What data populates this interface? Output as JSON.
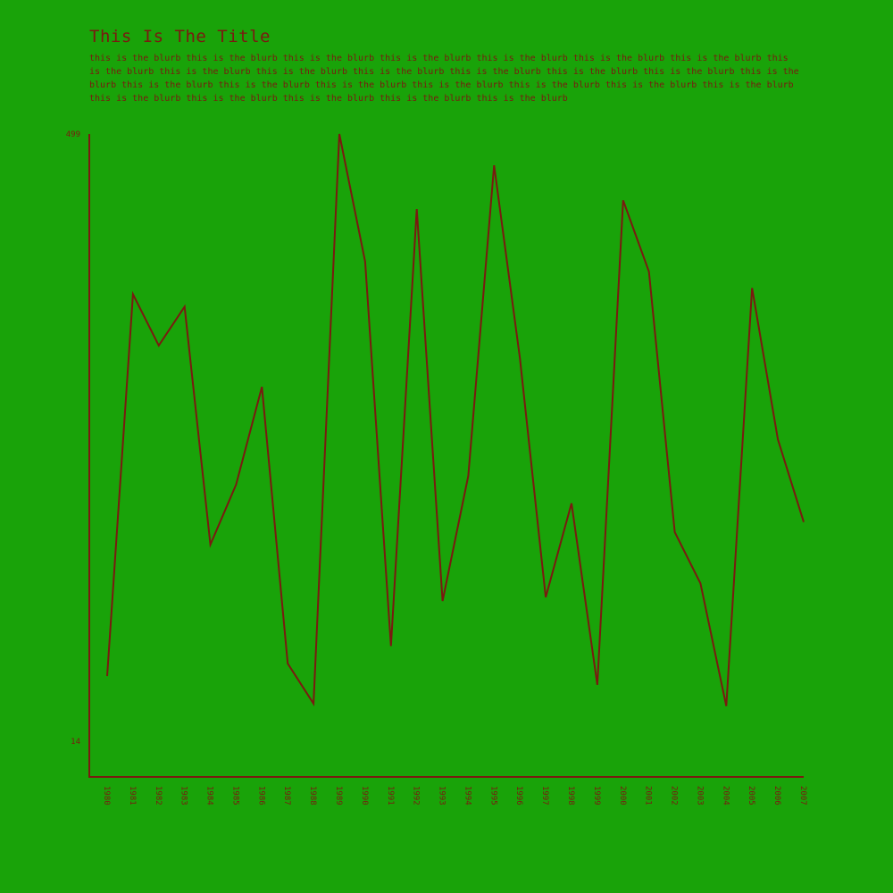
{
  "header": {
    "title": "This Is The Title",
    "blurb": "this is the blurb this is the blurb this is the blurb this is the blurb this is the blurb this is the blurb this is the blurb this is the blurb this is the blurb this is the blurb this is the blurb this is the blurb this is the blurb this is the blurb this is the blurb this is the blurb this is the blurb this is the blurb this is the blurb this is the blurb this is the blurb this is the blurb this is the blurb this is the blurb this is the blurb this is the blurb this is the blurb"
  },
  "colors": {
    "background": "#19a309",
    "line": "#7a1a10",
    "text": "#7a1a10"
  },
  "chart_data": {
    "type": "line",
    "title": "This Is The Title",
    "xlabel": "",
    "ylabel": "",
    "ylim": [
      14,
      499
    ],
    "y_ticks": [
      14,
      499
    ],
    "grid": false,
    "x": [
      1980,
      1981,
      1982,
      1983,
      1984,
      1985,
      1986,
      1987,
      1988,
      1989,
      1990,
      1991,
      1992,
      1993,
      1994,
      1995,
      1996,
      1997,
      1998,
      1999,
      2000,
      2001,
      2002,
      2003,
      2004,
      2005,
      2006,
      2007
    ],
    "series": [
      {
        "values": [
          66,
          371,
          330,
          361,
          171,
          219,
          297,
          76,
          44,
          499,
          397,
          90,
          439,
          126,
          226,
          474,
          320,
          129,
          204,
          59,
          446,
          389,
          181,
          140,
          42,
          376,
          255,
          189
        ]
      }
    ]
  }
}
